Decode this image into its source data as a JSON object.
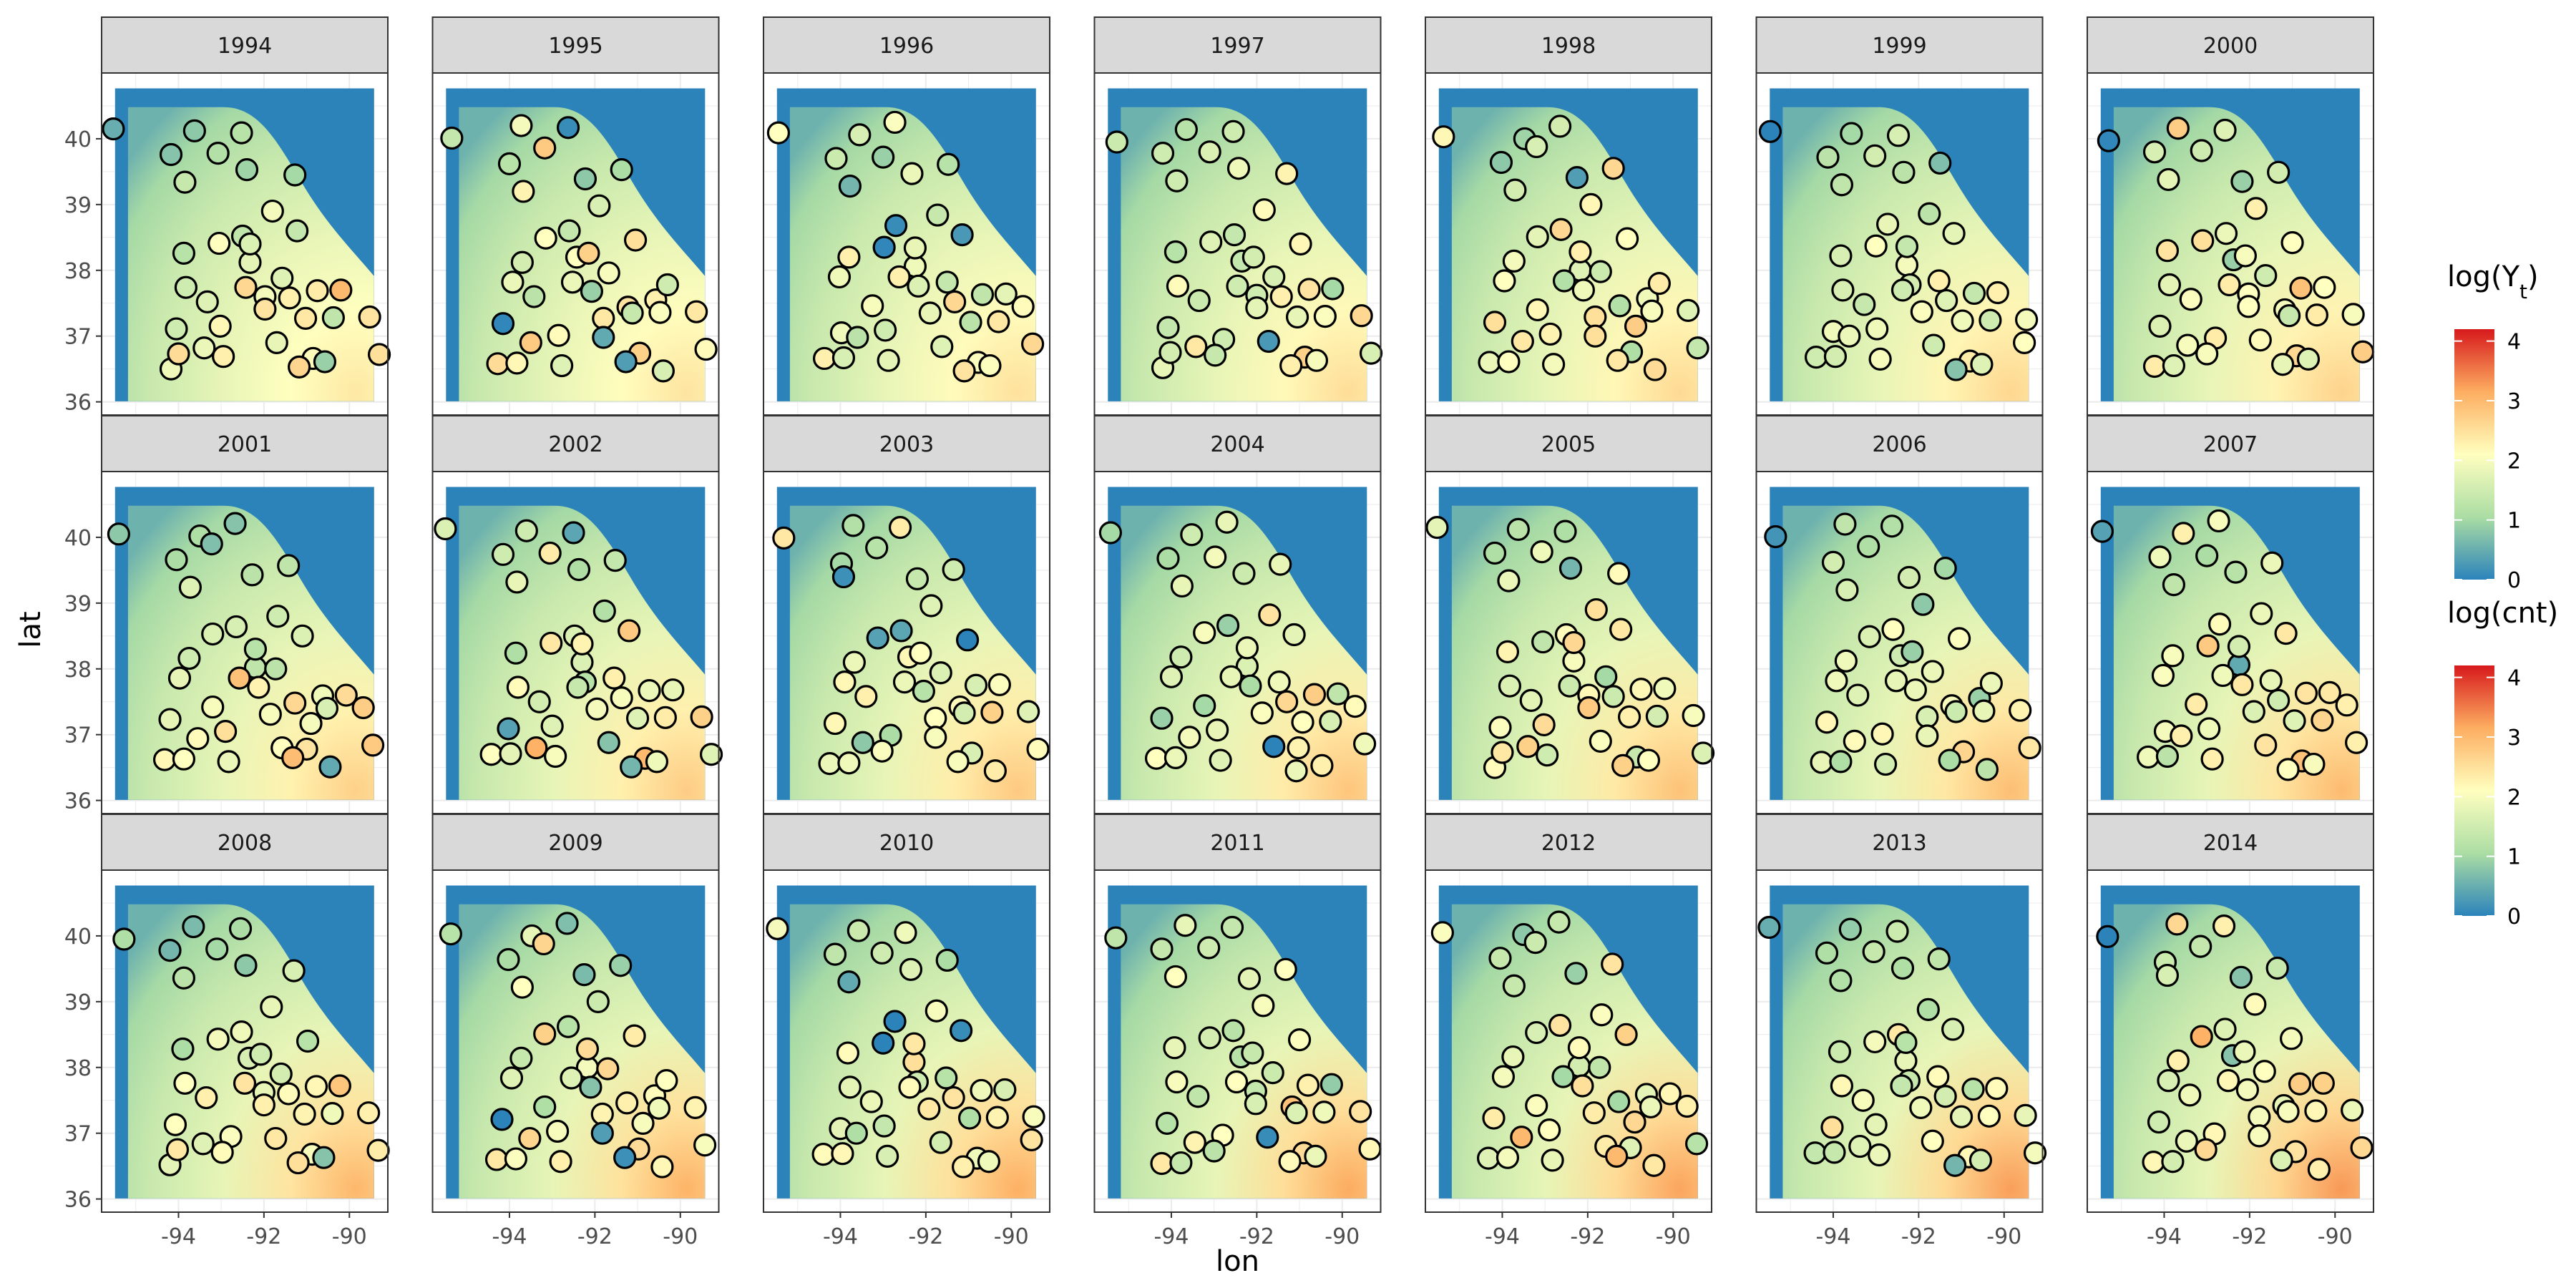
{
  "chart_data": {
    "type": "scatter",
    "layout": "faceted small multiples, 3 rows x 7 columns",
    "panels": [
      "1994",
      "1995",
      "1996",
      "1997",
      "1998",
      "1999",
      "2000",
      "2001",
      "2002",
      "2003",
      "2004",
      "2005",
      "2006",
      "2007",
      "2008",
      "2009",
      "2010",
      "2011",
      "2012",
      "2013",
      "2014"
    ],
    "xlabel": "lon",
    "ylabel": "lat",
    "xlim": [
      -95.8,
      -89.1
    ],
    "ylim": [
      35.8,
      41.0
    ],
    "xticks": [
      -94,
      -92,
      -90
    ],
    "xtick_labels": [
      "-94",
      "-92",
      "-90"
    ],
    "yticks": [
      36,
      37,
      38,
      39,
      40
    ],
    "ytick_labels": [
      "36",
      "37",
      "38",
      "39",
      "40"
    ],
    "grid": true,
    "colorscale": [
      "#2b83ba",
      "#abdda4",
      "#ffffbf",
      "#fdae61",
      "#d7191c"
    ],
    "color_range": [
      0,
      4.2
    ],
    "legends": [
      {
        "title_main": "log(Y",
        "title_sub": "t",
        "title_end": ")",
        "ticks": [
          0,
          1,
          2,
          3,
          4
        ],
        "tick_labels": [
          "0",
          "1",
          "2",
          "3",
          "4"
        ]
      },
      {
        "title_main": "log(cnt)",
        "title_sub": "",
        "title_end": "",
        "ticks": [
          0,
          1,
          2,
          3,
          4
        ],
        "tick_labels": [
          "0",
          "1",
          "2",
          "3",
          "4"
        ]
      }
    ],
    "sites": [
      [
        -95.4,
        40.05
      ],
      [
        -94.1,
        39.7
      ],
      [
        -93.6,
        40.1
      ],
      [
        -93.1,
        39.8
      ],
      [
        -92.6,
        40.15
      ],
      [
        -91.4,
        39.55
      ],
      [
        -92.3,
        39.45
      ],
      [
        -93.8,
        39.3
      ],
      [
        -91.8,
        38.9
      ],
      [
        -93.1,
        38.45
      ],
      [
        -92.6,
        38.6
      ],
      [
        -91.1,
        38.5
      ],
      [
        -93.8,
        38.2
      ],
      [
        -92.3,
        38.1
      ],
      [
        -91.6,
        37.9
      ],
      [
        -93.9,
        37.8
      ],
      [
        -92.1,
        37.7
      ],
      [
        -91.3,
        37.5
      ],
      [
        -90.7,
        37.65
      ],
      [
        -90.2,
        37.7
      ],
      [
        -94.1,
        37.15
      ],
      [
        -93.5,
        36.9
      ],
      [
        -92.9,
        37.05
      ],
      [
        -91.9,
        37.35
      ],
      [
        -91.0,
        37.25
      ],
      [
        -90.4,
        37.3
      ],
      [
        -89.6,
        37.35
      ],
      [
        -94.3,
        36.6
      ],
      [
        -93.9,
        36.65
      ],
      [
        -92.9,
        36.65
      ],
      [
        -91.7,
        36.9
      ],
      [
        -90.9,
        36.7
      ],
      [
        -89.4,
        36.8
      ],
      [
        -92.2,
        38.3
      ],
      [
        -90.5,
        36.55
      ],
      [
        -93.3,
        37.5
      ],
      [
        -91.2,
        36.55
      ],
      [
        -92.5,
        37.8
      ]
    ],
    "site_values": [
      [
        0.8,
        0.9,
        0.8,
        1.0,
        0.9,
        1.3,
        1.1,
        1.4,
        1.8,
        1.8,
        1.6,
        1.5,
        1.2,
        1.6,
        1.4,
        1.8,
        2.1,
        2.3,
        2.2,
        2.7,
        1.8,
        2.0,
        2.2,
        2.3,
        2.1,
        1.6,
        2.6,
        1.9,
        2.4,
        2.0,
        2.1,
        2.3,
        2.5,
        1.5,
        0.6,
        2.0,
        2.8,
        2.6
      ],
      [
        1.5,
        1.2,
        1.8,
        2.5,
        0.4,
        1.2,
        0.8,
        2.1,
        1.3,
        2.4,
        1.5,
        2.5,
        1.4,
        1.8,
        2.3,
        2.0,
        0.9,
        2.3,
        2.0,
        1.8,
        0.2,
        2.8,
        2.0,
        2.1,
        1.7,
        2.2,
        2.4,
        2.4,
        1.9,
        2.0,
        0.6,
        2.7,
        2.0,
        2.4,
        1.9,
        1.4,
        0.3,
        1.7
      ],
      [
        2.1,
        1.3,
        1.3,
        1.2,
        2.2,
        1.2,
        1.7,
        0.3,
        1.7,
        0.2,
        0.1,
        0.1,
        2.0,
        2.2,
        1.5,
        1.9,
        1.5,
        2.3,
        1.6,
        1.9,
        1.9,
        1.1,
        1.2,
        2.1,
        1.4,
        2.4,
        2.0,
        2.0,
        1.9,
        1.9,
        1.7,
        1.9,
        2.3,
        2.1,
        2.2,
        2.0,
        2.3,
        2.0
      ],
      [
        1.3,
        1.2,
        1.5,
        1.8,
        1.5,
        2.1,
        1.6,
        1.8,
        2.3,
        1.7,
        1.2,
        1.9,
        1.5,
        1.5,
        1.6,
        2.0,
        1.2,
        2.6,
        2.6,
        1.0,
        1.2,
        2.1,
        1.8,
        1.9,
        1.8,
        1.9,
        2.3,
        2.1,
        1.7,
        1.4,
        0.1,
        2.4,
        1.9,
        1.7,
        2.0,
        1.3,
        2.0,
        1.8
      ],
      [
        1.9,
        1.1,
        1.1,
        1.6,
        1.4,
        2.3,
        0.6,
        1.7,
        2.2,
        1.6,
        2.3,
        2.4,
        2.1,
        1.7,
        1.3,
        1.8,
        2.2,
        1.3,
        1.9,
        2.2,
        2.2,
        2.7,
        2.4,
        2.5,
        2.6,
        1.7,
        2.0,
        2.0,
        2.1,
        1.8,
        2.2,
        1.4,
        1.5,
        2.3,
        2.4,
        1.9,
        2.7,
        1.3
      ],
      [
        0.2,
        1.4,
        1.0,
        1.4,
        1.3,
        1.0,
        1.4,
        1.3,
        1.1,
        1.8,
        2.1,
        1.9,
        1.6,
        1.8,
        2.0,
        1.9,
        1.7,
        1.7,
        1.2,
        2.0,
        2.2,
        2.0,
        1.9,
        1.9,
        1.6,
        1.8,
        2.1,
        1.5,
        1.4,
        1.7,
        1.8,
        2.5,
        2.1,
        1.2,
        1.4,
        1.7,
        0.9,
        1.5
      ],
      [
        0.2,
        1.6,
        2.6,
        1.2,
        2.0,
        1.7,
        0.9,
        1.6,
        2.0,
        2.8,
        2.0,
        2.1,
        2.3,
        0.6,
        1.8,
        1.9,
        2.1,
        1.8,
        2.6,
        2.4,
        1.8,
        2.0,
        2.2,
        1.8,
        1.7,
        2.5,
        2.0,
        2.2,
        1.4,
        2.3,
        2.3,
        2.6,
        2.6,
        1.7,
        2.0,
        2.2,
        1.8,
        2.2
      ]
    ]
  }
}
